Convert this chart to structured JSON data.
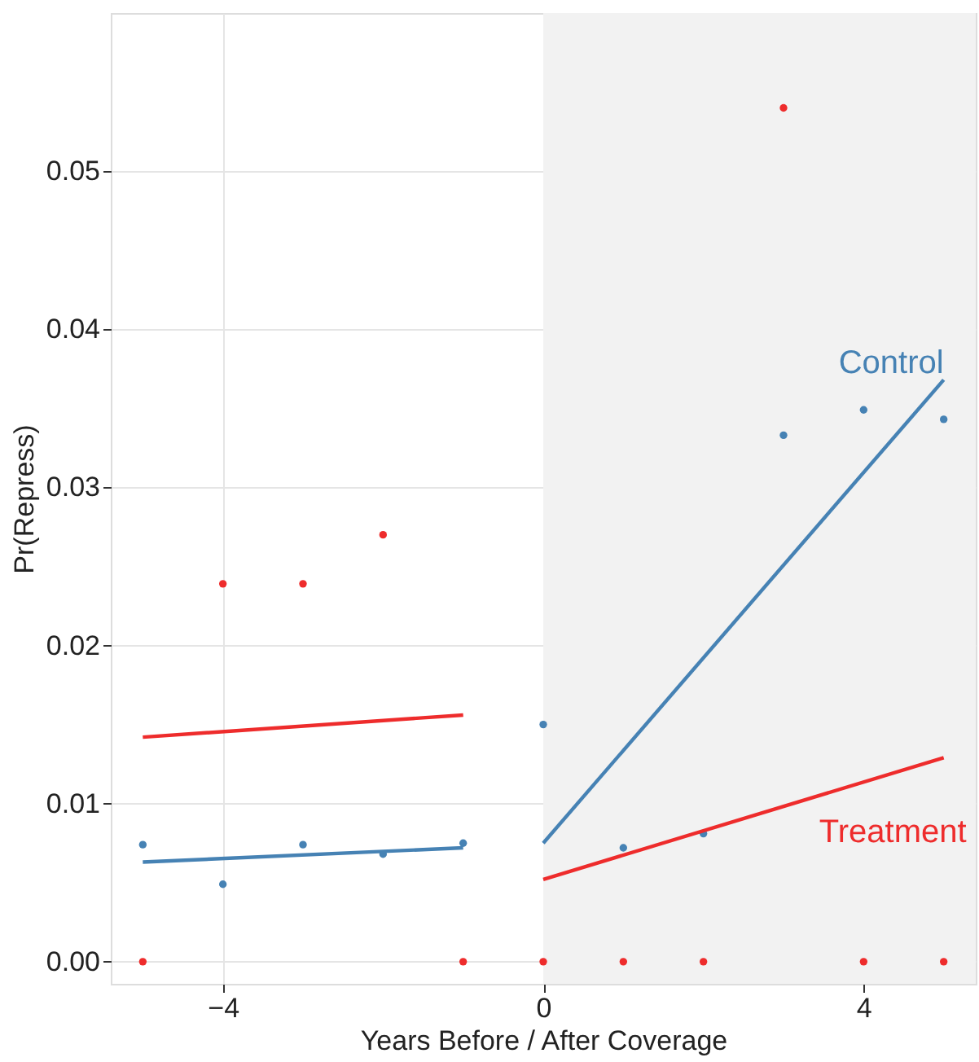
{
  "chart_data": {
    "type": "scatter",
    "xlabel": "Years Before / After Coverage",
    "ylabel": "Pr(Repress)",
    "xlim": [
      -5.4,
      5.4
    ],
    "ylim": [
      -0.0014,
      0.06
    ],
    "xticks": [
      -4,
      0,
      4
    ],
    "yticks": [
      {
        "value": 0,
        "label": "0.00"
      },
      {
        "value": 0.01,
        "label": "0.01"
      },
      {
        "value": 0.02,
        "label": "0.02"
      },
      {
        "value": 0.03,
        "label": "0.03"
      },
      {
        "value": 0.04,
        "label": "0.04"
      },
      {
        "value": 0.05,
        "label": "0.05"
      }
    ],
    "grid": true,
    "bands": [
      {
        "axis": "x",
        "from": 0,
        "to": 5.4,
        "color": "#f2f2f2"
      }
    ],
    "series": [
      {
        "type": "scatter",
        "color": "#4682b4",
        "marker": "circle",
        "x": [
          -5,
          -4,
          -3,
          -2,
          -1,
          0,
          1,
          2,
          3,
          4,
          5
        ],
        "values": [
          0.0074,
          0.0049,
          0.0074,
          0.0068,
          0.0075,
          0.015,
          0.0072,
          0.0081,
          0.0333,
          0.0349,
          0.0343
        ]
      },
      {
        "type": "scatter",
        "color": "#ee2c2c",
        "marker": "circle",
        "x": [
          -5,
          -4,
          -3,
          -2,
          -1,
          0,
          1,
          2,
          3,
          4,
          5
        ],
        "values": [
          0,
          0.0239,
          0.0239,
          0.027,
          0,
          0,
          0,
          0,
          0.054,
          0,
          0
        ]
      },
      {
        "type": "line",
        "color": "#4682b4",
        "x": [
          -5,
          -1
        ],
        "values": [
          0.0063,
          0.0072
        ]
      },
      {
        "type": "line",
        "color": "#ee2c2c",
        "x": [
          -5,
          -1
        ],
        "values": [
          0.0142,
          0.0156
        ]
      },
      {
        "type": "line",
        "name": "Control",
        "color": "#4682b4",
        "x": [
          0,
          5
        ],
        "values": [
          0.0075,
          0.0368
        ]
      },
      {
        "type": "line",
        "name": "Treatment",
        "color": "#ee2c2c",
        "x": [
          0,
          5
        ],
        "values": [
          0.0052,
          0.0129
        ]
      }
    ]
  }
}
